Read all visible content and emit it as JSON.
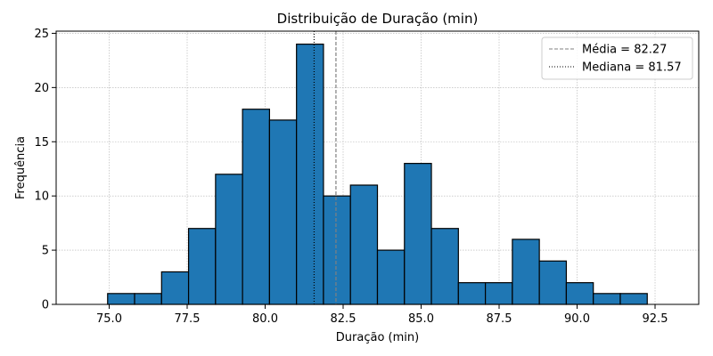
{
  "chart_data": {
    "type": "bar",
    "title": "Distribuição de Duração (min)",
    "xlabel": "Duração (min)",
    "ylabel": "Frequência",
    "bin_start": 74.95,
    "bin_width": 0.865,
    "values": [
      1,
      1,
      3,
      7,
      12,
      18,
      17,
      24,
      10,
      11,
      5,
      13,
      7,
      2,
      2,
      6,
      4,
      2,
      1,
      1
    ],
    "xlim": [
      73.3,
      93.9
    ],
    "ylim": [
      0,
      25.2
    ],
    "xticks": [
      75.0,
      77.5,
      80.0,
      82.5,
      85.0,
      87.5,
      90.0,
      92.5
    ],
    "xtick_labels": [
      "75.0",
      "77.5",
      "80.0",
      "82.5",
      "85.0",
      "87.5",
      "90.0",
      "92.5"
    ],
    "yticks": [
      0,
      5,
      10,
      15,
      20,
      25
    ],
    "ytick_labels": [
      "0",
      "5",
      "10",
      "15",
      "20",
      "25"
    ],
    "grid": true,
    "mean": 82.27,
    "median": 81.57,
    "legend": {
      "position": "top-right",
      "entries": [
        "Média = 82.27",
        "Mediana = 81.57"
      ]
    },
    "colors": {
      "bar": "#1f77b4",
      "bar_edge": "#000000",
      "mean_line": "#808080",
      "median_line": "#000000",
      "grid": "#b0b0b0"
    }
  }
}
